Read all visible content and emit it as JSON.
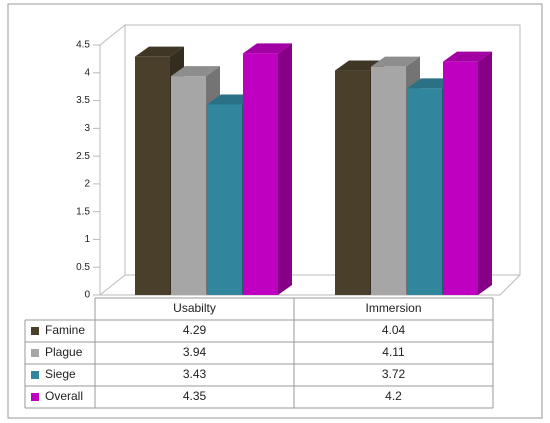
{
  "chart_data": {
    "type": "bar",
    "categories": [
      "Usabilty",
      "Immersion"
    ],
    "series": [
      {
        "name": "Famine",
        "color": "#4a3f2b",
        "values": [
          4.29,
          4.04
        ]
      },
      {
        "name": "Plague",
        "color": "#a6a6a6",
        "values": [
          3.94,
          4.11
        ]
      },
      {
        "name": "Siege",
        "color": "#31859c",
        "values": [
          3.43,
          3.72
        ]
      },
      {
        "name": "Overall",
        "color": "#c000c0",
        "values": [
          4.35,
          4.2
        ]
      }
    ],
    "ylim": [
      0,
      4.5
    ],
    "yticks": [
      0,
      0.5,
      1,
      1.5,
      2,
      2.5,
      3,
      3.5,
      4,
      4.5
    ]
  }
}
